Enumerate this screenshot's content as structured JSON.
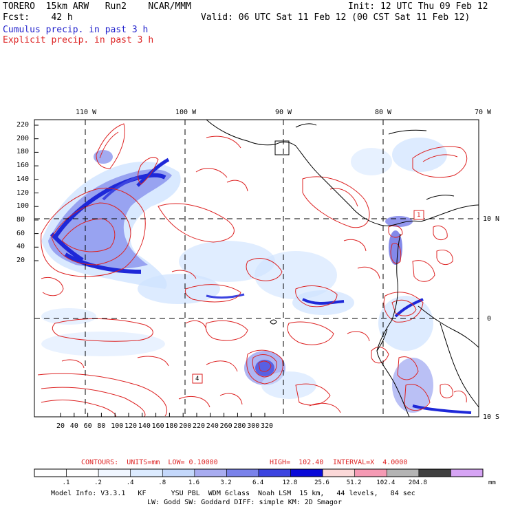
{
  "header": {
    "line1_left": "TORERO  15km ARW   Run2    NCAR/MMM",
    "line1_right": "Init: 12 UTC Thu 09 Feb 12",
    "line2_left": "Fcst:    42 h",
    "line2_right": "Valid: 06 UTC Sat 11 Feb 12 (00 CST Sat 11 Feb 12)",
    "line3": "Cumulus precip. in past 3 h",
    "line4": "Explicit precip. in past 3 h"
  },
  "map": {
    "lon_labels": [
      "110 W",
      "100 W",
      "90 W",
      "80 W",
      "70 W"
    ],
    "lat_labels": [
      "10 N",
      "0",
      "10 S"
    ],
    "y_grid_labels": [
      "220",
      "200",
      "180",
      "160",
      "140",
      "120",
      "100",
      "80",
      "60",
      "40",
      "20"
    ],
    "x_grid_labels": [
      "20",
      "40",
      "60",
      "80",
      "100",
      "120",
      "140",
      "160",
      "180",
      "200",
      "220",
      "240",
      "260",
      "280",
      "300",
      "320"
    ],
    "box_labels": [
      "1",
      "4"
    ],
    "colors": {
      "contour": "#dd2222",
      "precip_light": "#cfe3ff",
      "precip_med": "#8c96ee",
      "precip_dark": "#1e28d8",
      "coast": "#000000"
    }
  },
  "contour_info": {
    "contours": "CONTOURS:  UNITS=mm  LOW= 0.10000",
    "high": "HIGH=  102.40",
    "interval": "INTERVAL=X  4.0000"
  },
  "colorbar": {
    "colors": [
      "#ffffff",
      "#ffffff",
      "#f0f6ff",
      "#dcebff",
      "#c4d8fb",
      "#a8acf0",
      "#7a82ea",
      "#3c44e0",
      "#0a0ad8",
      "#fbd8d8",
      "#f59ab4",
      "#b4b4b4",
      "#404040",
      "#d6a4f4"
    ],
    "labels": [
      ".1",
      ".2",
      ".4",
      ".8",
      "1.6",
      "3.2",
      "6.4",
      "12.8",
      "25.6",
      "51.2",
      "102.4",
      "204.8"
    ],
    "unit": "mm"
  },
  "footer": {
    "line1": "Model Info: V3.3.1   KF      YSU PBL  WDM 6class  Noah LSM  15 km,   44 levels,   84 sec",
    "line2": "LW: Godd SW: Goddard DIFF: simple KM: 2D Smagor"
  }
}
